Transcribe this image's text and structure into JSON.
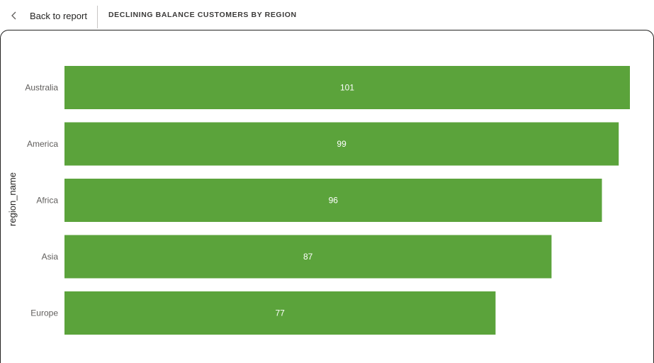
{
  "header": {
    "back_label": "Back to report",
    "title": "DECLINING BALANCE CUSTOMERS BY REGION"
  },
  "colors": {
    "bar": "#5ba33b"
  },
  "icons": {
    "back": "chevron-left-icon"
  },
  "chart_data": {
    "type": "bar",
    "orientation": "horizontal",
    "title": "",
    "xlabel": "",
    "ylabel": "region_name",
    "categories": [
      "Australia",
      "America",
      "Africa",
      "Asia",
      "Europe"
    ],
    "values": [
      101,
      99,
      96,
      87,
      77
    ],
    "xlim": [
      0,
      101
    ],
    "grid": false,
    "legend": "none"
  }
}
